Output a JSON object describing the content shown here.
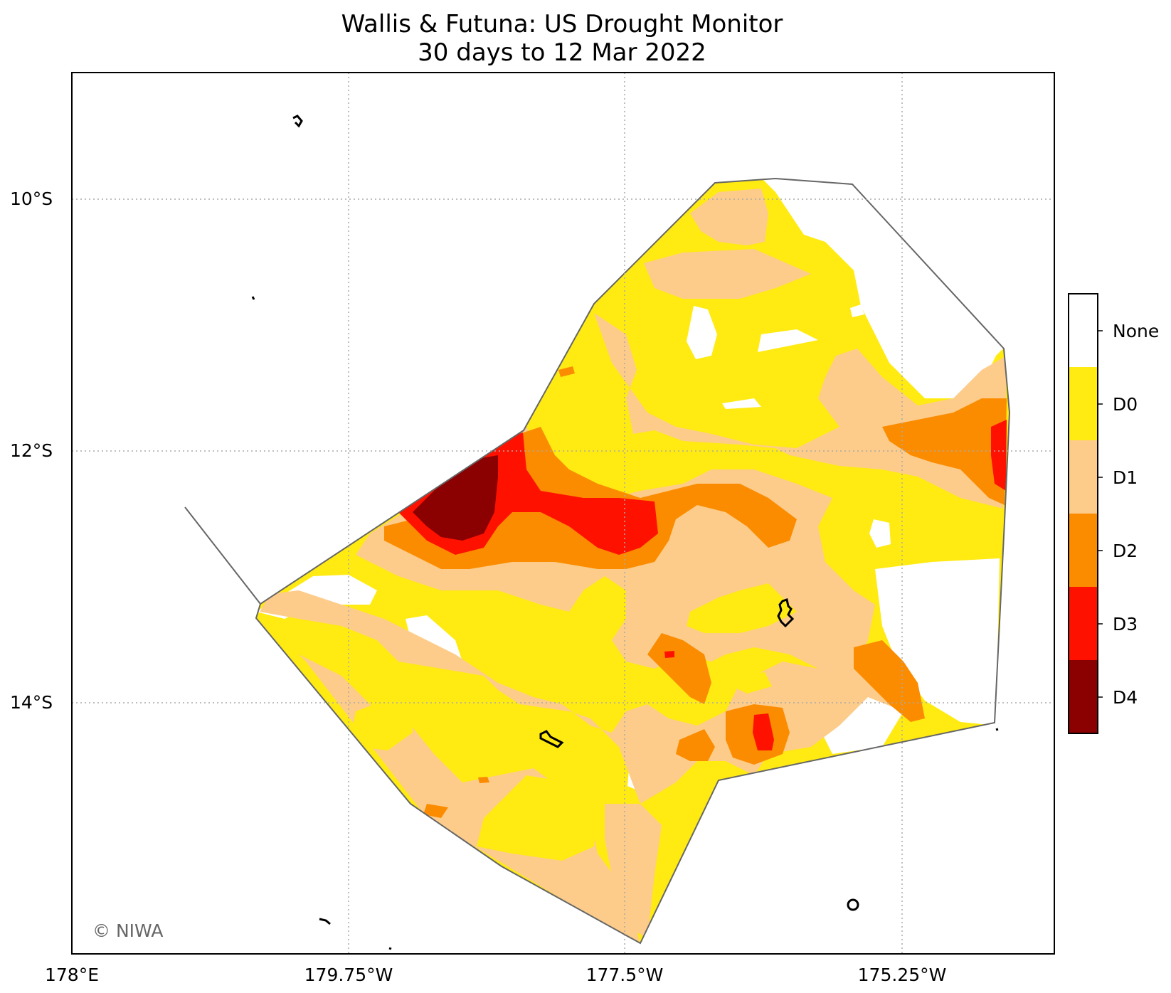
{
  "title": "Wallis & Futuna: US Drought Monitor",
  "subtitle": "30 days to 12 Mar 2022",
  "map": {
    "lon_labels": [
      "178°E",
      "179.75°W",
      "177.5°W",
      "175.25°W"
    ],
    "lat_labels": [
      "10°S",
      "12°S",
      "14°S"
    ],
    "gridlines": true,
    "credit": "© NIWA"
  },
  "legend": {
    "placement": "right",
    "categories": [
      {
        "label": "None",
        "color": "#ffffff"
      },
      {
        "label": "D0",
        "color": "#ffea12"
      },
      {
        "label": "D1",
        "color": "#fdcc8a"
      },
      {
        "label": "D2",
        "color": "#fb8c00"
      },
      {
        "label": "D3",
        "color": "#ff1100"
      },
      {
        "label": "D4",
        "color": "#8b0000"
      }
    ]
  },
  "colors": {
    "boundary": "#666666",
    "grid": "#aaaaaa",
    "island": "#000000"
  }
}
